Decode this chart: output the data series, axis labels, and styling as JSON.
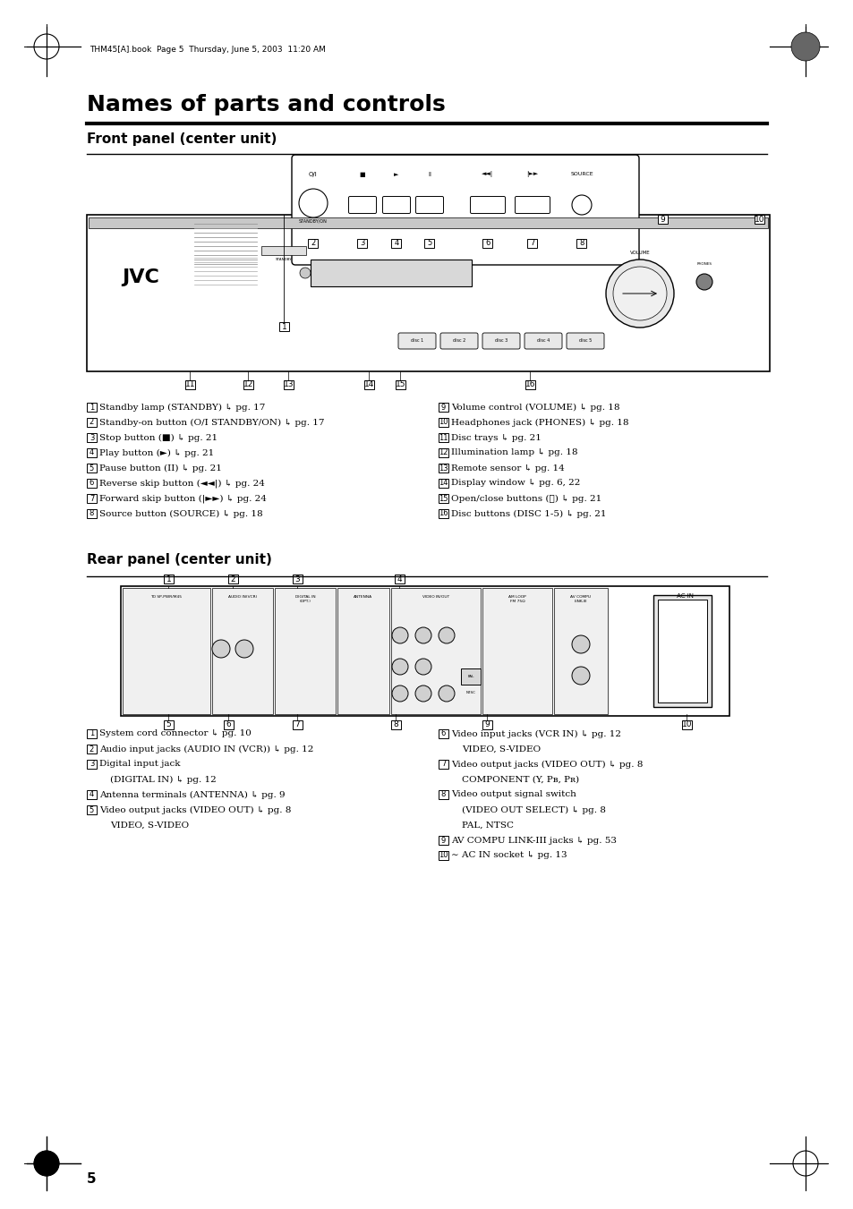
{
  "page_bg": "#ffffff",
  "title": "Names of parts and controls",
  "section1": "Front panel (center unit)",
  "section2": "Rear panel (center unit)",
  "header_text": "THM45[A].book  Page 5  Thursday, June 5, 2003  11:20 AM",
  "page_number": "5",
  "front_labels_left": [
    [
      "1",
      "Standby lamp (STANDBY)",
      " pg. 17"
    ],
    [
      "2",
      "Standby-on button (O/I STANDBY/ON)",
      " pg. 17"
    ],
    [
      "3",
      "Stop button (■)",
      " pg. 21"
    ],
    [
      "4",
      "Play button (►)",
      " pg. 21"
    ],
    [
      "5",
      "Pause button (II)",
      " pg. 21"
    ],
    [
      "6",
      "Reverse skip button (◄◄|)",
      " pg. 24"
    ],
    [
      "7",
      "Forward skip button (|►►)",
      " pg. 24"
    ],
    [
      "8",
      "Source button (SOURCE)",
      " pg. 18"
    ]
  ],
  "front_labels_right": [
    [
      "9",
      "Volume control (VOLUME)",
      " pg. 18"
    ],
    [
      "10",
      "Headphones jack (PHONES)",
      " pg. 18"
    ],
    [
      "11",
      "Disc trays",
      " pg. 21"
    ],
    [
      "12",
      "Illumination lamp",
      " pg. 18"
    ],
    [
      "13",
      "Remote sensor",
      " pg. 14"
    ],
    [
      "14",
      "Display window",
      " pg. 6, 22"
    ],
    [
      "15",
      "Open/close buttons (⏫)",
      " pg. 21"
    ],
    [
      "16",
      "Disc buttons (DISC 1-5)",
      " pg. 21"
    ]
  ],
  "rear_labels_left": [
    [
      "1",
      "System cord connector",
      " pg. 10"
    ],
    [
      "2",
      "Audio input jacks (AUDIO IN (VCR))",
      " pg. 12"
    ],
    [
      "3",
      "Digital input jack",
      ""
    ],
    [
      "",
      "(DIGITAL IN)",
      " pg. 12"
    ],
    [
      "4",
      "Antenna terminals (ANTENNA)",
      " pg. 9"
    ],
    [
      "5",
      "Video output jacks (VIDEO OUT)",
      " pg. 8"
    ],
    [
      "",
      "VIDEO, S-VIDEO",
      ""
    ]
  ],
  "rear_labels_right": [
    [
      "6",
      "Video input jacks (VCR IN)",
      " pg. 12"
    ],
    [
      "",
      "VIDEO, S-VIDEO",
      ""
    ],
    [
      "7",
      "Video output jacks (VIDEO OUT)",
      " pg. 8"
    ],
    [
      "",
      "COMPONENT (Y, Pʙ, Pʀ)",
      ""
    ],
    [
      "8",
      "Video output signal switch",
      ""
    ],
    [
      "",
      "(VIDEO OUT SELECT)",
      " pg. 8"
    ],
    [
      "",
      "PAL, NTSC",
      ""
    ],
    [
      "9",
      "AV COMPU LINK-III jacks",
      " pg. 53"
    ],
    [
      "10",
      "∼ AC IN socket",
      " pg. 13"
    ]
  ]
}
